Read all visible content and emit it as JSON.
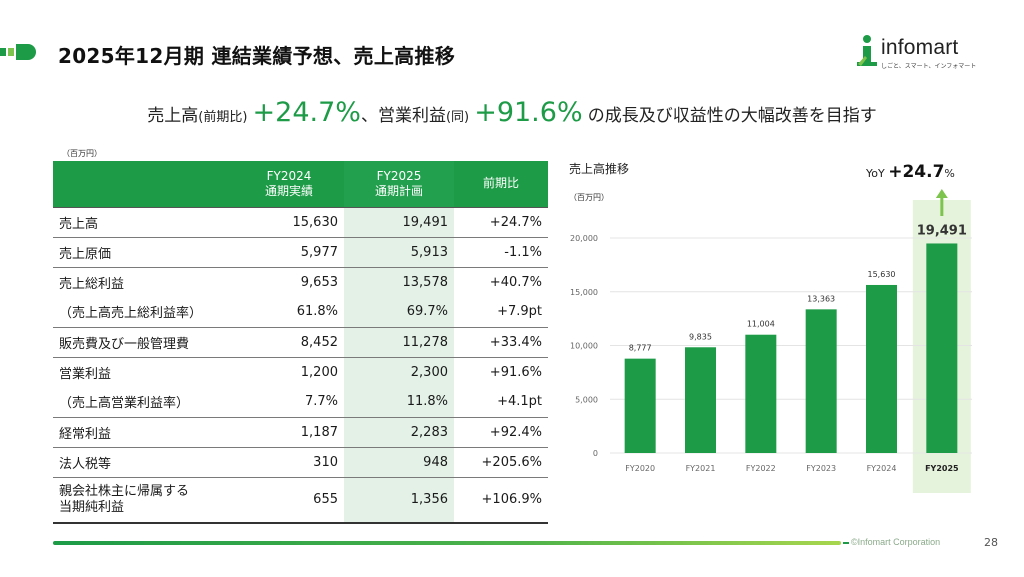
{
  "title": "2025年12月期 連結業績予想、売上高推移",
  "logo": {
    "name": "infomart",
    "tagline": "しごと、スマート、インフォマート"
  },
  "headline": {
    "part1": "売上高",
    "part1_note": "(前期比)",
    "pct1": "+24.7%",
    "sep": "、営業利益",
    "part2_note": "(同)",
    "pct2": "+91.6%",
    "tail": "の成長及び収益性の大幅改善を目指す"
  },
  "table": {
    "unit": "（百万円）",
    "headers": [
      {
        "line1": "",
        "line2": ""
      },
      {
        "line1": "FY2024",
        "line2": "通期実績"
      },
      {
        "line1": "FY2025",
        "line2": "通期計画"
      },
      {
        "line1": "前期比",
        "line2": ""
      }
    ],
    "rows": [
      {
        "label": "売上高",
        "fy2024": "15,630",
        "fy2025": "19,491",
        "yoy": "+24.7%"
      },
      {
        "label": "売上原価",
        "fy2024": "5,977",
        "fy2025": "5,913",
        "yoy": "-1.1%"
      },
      {
        "label": "売上総利益",
        "fy2024": "9,653",
        "fy2025": "13,578",
        "yoy": "+40.7%"
      },
      {
        "label": "（売上高売上総利益率）",
        "fy2024": "61.8%",
        "fy2025": "69.7%",
        "yoy": "+7.9pt"
      },
      {
        "label": "販売費及び一般管理費",
        "fy2024": "8,452",
        "fy2025": "11,278",
        "yoy": "+33.4%"
      },
      {
        "label": "営業利益",
        "fy2024": "1,200",
        "fy2025": "2,300",
        "yoy": "+91.6%"
      },
      {
        "label": "（売上高営業利益率）",
        "fy2024": "7.7%",
        "fy2025": "11.8%",
        "yoy": "+4.1pt"
      },
      {
        "label": "経常利益",
        "fy2024": "1,187",
        "fy2025": "2,283",
        "yoy": "+92.4%"
      },
      {
        "label": "法人税等",
        "fy2024": "310",
        "fy2025": "948",
        "yoy": "+205.6%"
      },
      {
        "label_line1": "親会社株主に帰属する",
        "label_line2": "当期純利益",
        "fy2024": "655",
        "fy2025": "1,356",
        "yoy": "+106.9%"
      }
    ]
  },
  "chart_title": "売上高推移",
  "yoy_callout": {
    "prefix": "YoY ",
    "value": "+24.7",
    "suffix": "%"
  },
  "chart_data": {
    "type": "bar",
    "title": "売上高推移",
    "unit": "（百万円）",
    "categories": [
      "FY2020",
      "FY2021",
      "FY2022",
      "FY2023",
      "FY2024",
      "FY2025"
    ],
    "values": [
      8777,
      9835,
      11004,
      13363,
      15630,
      19491
    ],
    "labels": [
      "8,777",
      "9,835",
      "11,004",
      "13,363",
      "15,630",
      "19,491"
    ],
    "yticks": [
      "0",
      "5,000",
      "10,000",
      "15,000",
      "20,000"
    ],
    "ylim": [
      0,
      20000
    ],
    "highlight": "FY2025",
    "bar_color": "#1d9b47",
    "highlight_bg": "#e6f3dc",
    "grid": true
  },
  "footer": {
    "copyright": "©Infomart Corporation",
    "page": "28"
  },
  "colors": {
    "brand_green": "#1d9b47",
    "light_green": "#7dc44e"
  }
}
